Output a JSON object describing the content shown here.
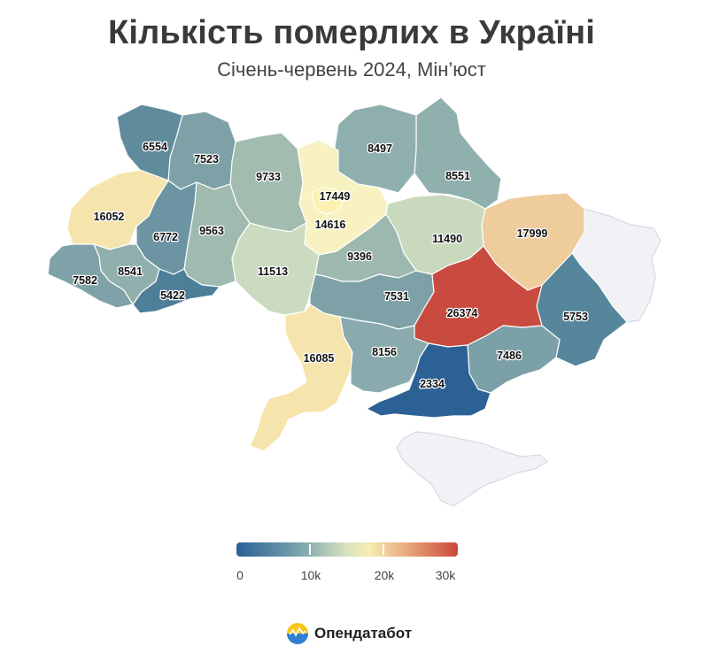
{
  "title": "Кількість померлих в Україні",
  "subtitle": "Січень-червень 2024, Мін’юст",
  "regions": [
    {
      "id": "volyn",
      "value": "6554",
      "color": "#5f8b9d"
    },
    {
      "id": "rivne",
      "value": "7523",
      "color": "#7ea1a7"
    },
    {
      "id": "zhytomyr",
      "value": "9733",
      "color": "#a3bcb0"
    },
    {
      "id": "chernihiv",
      "value": "8497",
      "color": "#8fafae"
    },
    {
      "id": "sumy",
      "value": "8551",
      "color": "#90b0ad"
    },
    {
      "id": "kyiv_city",
      "value": "17449",
      "color": "#fbf1b0"
    },
    {
      "id": "kyiv_oblast",
      "value": "14616",
      "color": "#f8f2c2"
    },
    {
      "id": "lviv",
      "value": "16052",
      "color": "#f6e4ad"
    },
    {
      "id": "ternopil",
      "value": "6772",
      "color": "#6d94a2"
    },
    {
      "id": "khmelnytskyi",
      "value": "9563",
      "color": "#9fbaae"
    },
    {
      "id": "vinnytsia",
      "value": "11513",
      "color": "#cadbbf"
    },
    {
      "id": "cherkasy",
      "value": "9396",
      "color": "#9db8ae"
    },
    {
      "id": "poltava",
      "value": "11490",
      "color": "#c8d9be"
    },
    {
      "id": "kharkiv",
      "value": "17999",
      "color": "#efcc9c"
    },
    {
      "id": "zakarpattia",
      "value": "7582",
      "color": "#7ea2a8"
    },
    {
      "id": "ivano_frankivsk",
      "value": "8541",
      "color": "#90b0ad"
    },
    {
      "id": "chernivtsi",
      "value": "5422",
      "color": "#4d7f98"
    },
    {
      "id": "kirovohrad",
      "value": "7531",
      "color": "#7ea1a7"
    },
    {
      "id": "dnipro",
      "value": "26374",
      "color": "#c94b3f"
    },
    {
      "id": "luhansk",
      "value": "5753",
      "color": "#55869b"
    },
    {
      "id": "odesa",
      "value": "16085",
      "color": "#f6e4ad"
    },
    {
      "id": "mykolaiv",
      "value": "8156",
      "color": "#8aabad"
    },
    {
      "id": "zaporizhzhia",
      "value": "7486",
      "color": "#7ca0a8"
    },
    {
      "id": "kherson",
      "value": "2334",
      "color": "#2c6196"
    },
    {
      "id": "donetsk",
      "value": "",
      "color": "#f2f2f6"
    },
    {
      "id": "crimea",
      "value": "",
      "color": "#f2f2f6"
    }
  ],
  "legend": {
    "labels": [
      "0",
      "10k",
      "20k",
      "30k"
    ],
    "min": 0,
    "max": 30000
  },
  "brand": "Опендатабот"
}
